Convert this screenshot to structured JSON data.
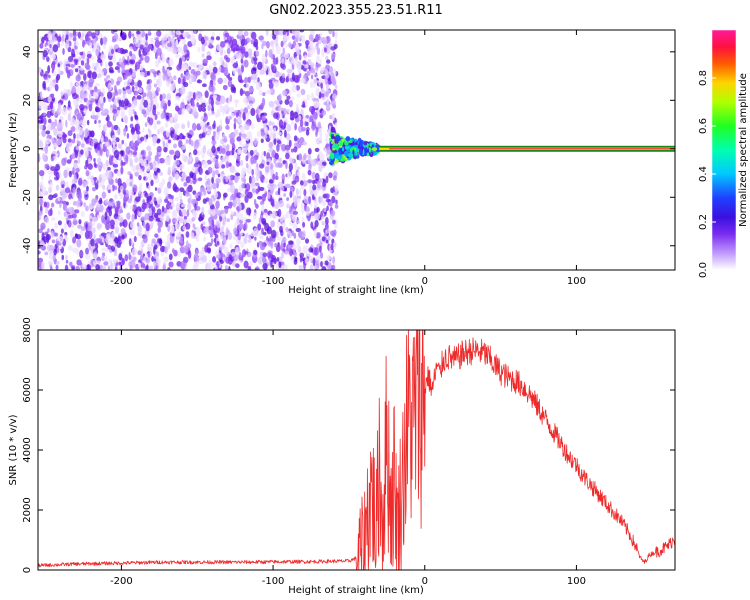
{
  "title": "GN02.2023.355.23.51.R11",
  "colors": {
    "snr_line": "#ee2a2a",
    "spectrogram_noise": "#7a2cf0",
    "carrier_band": "#1a8a1a",
    "carrier_core": "#ff2a4a"
  },
  "chart_data": [
    {
      "type": "heatmap",
      "title": "",
      "xlabel": "Height of straight line (km)",
      "ylabel": "Frequency (Hz)",
      "xlim": [
        -255,
        165
      ],
      "ylim": [
        -50,
        49
      ],
      "xticks": [
        -200,
        -100,
        0,
        100
      ],
      "yticks": [
        -40,
        -20,
        0,
        20,
        40
      ],
      "grid": false,
      "colorbar": {
        "label": "Normalized spectral amplitude",
        "range": [
          0,
          1
        ],
        "ticks": [
          "0.0",
          "0.2",
          "0.4",
          "0.6",
          "0.8"
        ],
        "colormap": "rainbow (white-purple-blue-cyan-green-yellow-red-pink)"
      },
      "features": {
        "noise_region_x": [
          -255,
          -58
        ],
        "noise_amplitude": 0.1,
        "transition_region_x": [
          -62,
          -30
        ],
        "transition_amplitude": 0.4,
        "carrier_start_x": -30,
        "carrier_frequency": 0,
        "carrier_amplitude": 1.0
      }
    },
    {
      "type": "line",
      "title": "",
      "xlabel": "Height of straight line (km)",
      "ylabel": "SNR (10 * v/v)",
      "xlim": [
        -255,
        165
      ],
      "ylim": [
        0,
        8000
      ],
      "xticks": [
        -200,
        -100,
        0,
        100
      ],
      "yticks": [
        0,
        2000,
        4000,
        6000,
        8000
      ],
      "grid": false,
      "series": [
        {
          "x": [
            -255,
            -230,
            -200,
            -175,
            -150,
            -125,
            -100,
            -75,
            -50,
            -45,
            -40,
            -38,
            -35,
            -32,
            -30,
            -28,
            -25,
            -22,
            -20,
            -18,
            -15,
            -12,
            -10,
            -8,
            -5,
            -3,
            0,
            2,
            5,
            8,
            10,
            12,
            15,
            20,
            25,
            30,
            35,
            40,
            45,
            50,
            55,
            60,
            65,
            70,
            75,
            80,
            85,
            90,
            95,
            100,
            105,
            110,
            115,
            120,
            125,
            130,
            135,
            140,
            142,
            145,
            148,
            150,
            155,
            160,
            165
          ],
          "values": [
            150,
            200,
            230,
            260,
            260,
            260,
            270,
            280,
            300,
            400,
            800,
            1800,
            2800,
            1200,
            3800,
            1500,
            4500,
            2000,
            3200,
            1400,
            2800,
            4600,
            5200,
            4800,
            5600,
            5400,
            6000,
            6500,
            6000,
            6800,
            6500,
            7000,
            7100,
            7000,
            7200,
            7300,
            7300,
            7200,
            6900,
            6600,
            6400,
            6300,
            6100,
            5800,
            5400,
            5000,
            4600,
            4200,
            3800,
            3500,
            3100,
            2800,
            2500,
            2200,
            1900,
            1600,
            1200,
            700,
            400,
            250,
            500,
            550,
            650,
            800,
            1050
          ]
        }
      ]
    }
  ]
}
